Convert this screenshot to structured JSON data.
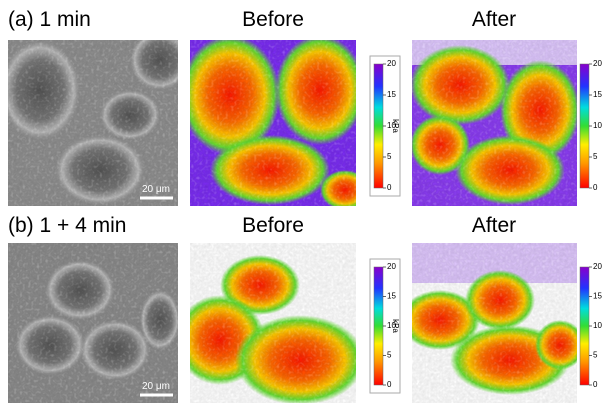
{
  "panels": [
    {
      "label": "(a) 1 min",
      "scale_bar": "20 μm",
      "before": {
        "title": "Before",
        "colorbar": {
          "lim": [
            0,
            20
          ],
          "ticks": [
            0,
            5,
            10,
            15,
            20
          ],
          "unit": "kPa"
        }
      },
      "after": {
        "title": "After",
        "colorbar": {
          "lim": [
            0,
            20
          ],
          "ticks": [
            0,
            5,
            10,
            15,
            20
          ]
        }
      }
    },
    {
      "label": "(b) 1 + 4 min",
      "scale_bar": "20 μm",
      "before": {
        "title": "Before",
        "colorbar": {
          "lim": [
            0,
            20
          ],
          "ticks": [
            0,
            5,
            10,
            15,
            20
          ],
          "unit": "kPa"
        }
      },
      "after": {
        "title": "After",
        "colorbar": {
          "lim": [
            0,
            20
          ],
          "ticks": [
            0,
            5,
            10,
            15,
            20
          ]
        }
      }
    }
  ]
}
